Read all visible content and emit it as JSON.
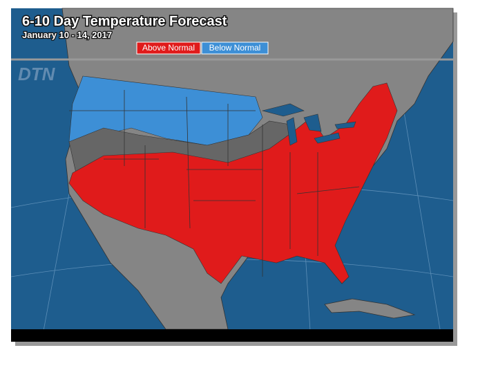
{
  "header": {
    "title": "6-10 Day Temperature Forecast",
    "subtitle": "January 10 - 14, 2017"
  },
  "legend": [
    {
      "label": "Above Normal",
      "color": "#e01b1b"
    },
    {
      "label": "Below Normal",
      "color": "#3d8fd6"
    }
  ],
  "logo": "DTN"
}
